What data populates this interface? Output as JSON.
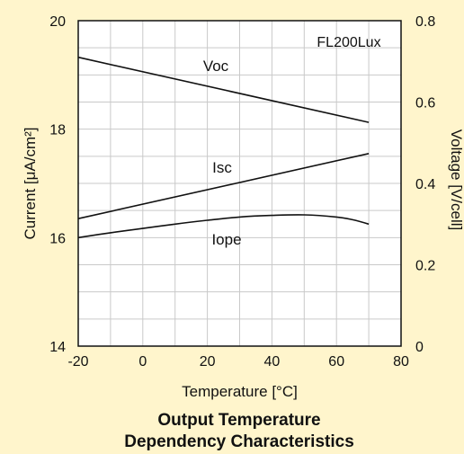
{
  "chart_data": {
    "type": "line",
    "title_line1": "Output Temperature",
    "title_line2": "Dependency Characteristics",
    "annotation": "FL200Lux",
    "xlabel": "Temperature [°C]",
    "ylabel_left": "Current [μA/cm²]",
    "ylabel_right": "Voltage [V/cell]",
    "xlim": [
      -20,
      80
    ],
    "ylim_left": [
      14,
      20
    ],
    "ylim_right": [
      0,
      0.8
    ],
    "x_ticks": [
      -20,
      0,
      20,
      40,
      60,
      80
    ],
    "x_tick_labels": [
      "-20",
      "0",
      "20",
      "40",
      "60",
      "80"
    ],
    "y_left_ticks": [
      14,
      16,
      18,
      20
    ],
    "y_left_tick_labels": [
      "14",
      "16",
      "18",
      "20"
    ],
    "y_right_ticks": [
      0,
      0.2,
      0.4,
      0.6,
      0.8
    ],
    "y_right_tick_labels": [
      "0",
      "0.2",
      "0.4",
      "0.6",
      "0.8"
    ],
    "grid": true,
    "series": [
      {
        "name": "Voc",
        "axis": "right",
        "x": [
          -20,
          70
        ],
        "y": [
          0.71,
          0.55
        ]
      },
      {
        "name": "Isc",
        "axis": "left",
        "x": [
          -20,
          70
        ],
        "y": [
          16.35,
          17.55
        ]
      },
      {
        "name": "Iope",
        "axis": "left",
        "x": [
          -20,
          -10,
          0,
          10,
          20,
          30,
          40,
          50,
          60,
          65,
          70
        ],
        "y": [
          16.0,
          16.09,
          16.17,
          16.25,
          16.32,
          16.38,
          16.41,
          16.42,
          16.38,
          16.33,
          16.25
        ]
      }
    ]
  }
}
